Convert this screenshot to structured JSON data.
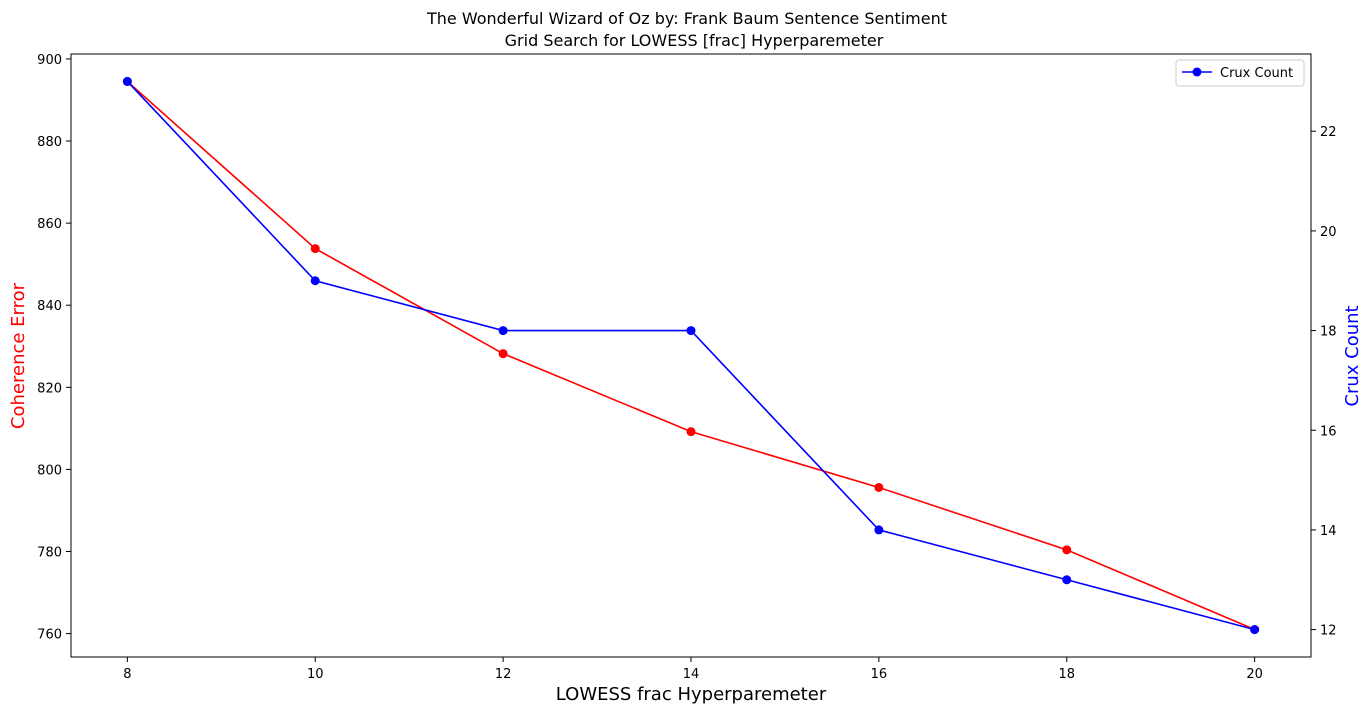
{
  "chart_data": {
    "type": "line",
    "title": "The Wonderful Wizard of Oz by: Frank Baum Sentence Sentiment",
    "subtitle": "Grid Search for LOWESS [frac] Hyperparemeter",
    "xlabel": "LOWESS frac Hyperparemeter",
    "ylabel_left": "Coherence Error",
    "ylabel_right": "Crux Count",
    "x": [
      8,
      10,
      12,
      14,
      16,
      18,
      20
    ],
    "xticks": [
      "8",
      "10",
      "12",
      "14",
      "16",
      "18",
      "20"
    ],
    "xlim": [
      7.4,
      20.6
    ],
    "series": [
      {
        "name": "",
        "axis": "left",
        "color": "#ff0000",
        "values": [
          894.5,
          853.8,
          828.2,
          809.2,
          795.6,
          780.4,
          761.0
        ]
      },
      {
        "name": "Crux Count",
        "axis": "right",
        "color": "#0000ff",
        "values": [
          23,
          19,
          18,
          18,
          14,
          13,
          12
        ]
      }
    ],
    "ylim_left": [
      754.3,
      901.2
    ],
    "yticks_left": [
      "760",
      "780",
      "800",
      "820",
      "840",
      "860",
      "880",
      "900"
    ],
    "ylim_right": [
      11.45,
      23.55
    ],
    "yticks_right": [
      "12",
      "14",
      "16",
      "18",
      "20",
      "22"
    ],
    "legend_location": "upper right",
    "grid": false
  }
}
